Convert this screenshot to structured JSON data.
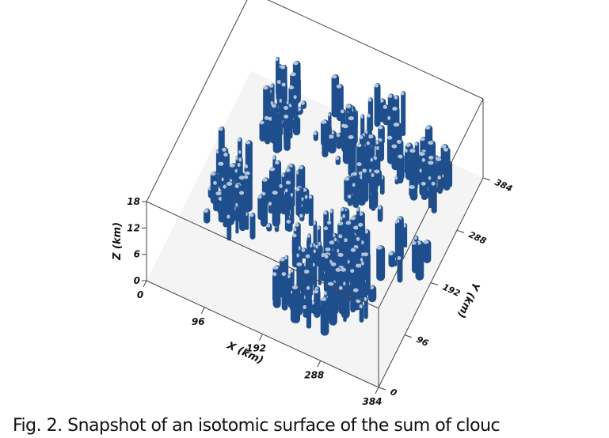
{
  "figure": {
    "axes": {
      "x": {
        "label": "X (km)",
        "ticks": [
          "0",
          "96",
          "192",
          "288",
          "384"
        ]
      },
      "y": {
        "label": "Y (km)",
        "ticks": [
          "0",
          "96",
          "192",
          "288",
          "384"
        ]
      },
      "z": {
        "label": "Z (km)",
        "ticks": [
          "0",
          "6",
          "12",
          "18"
        ]
      }
    },
    "caption": "Fig. 2. Snapshot of an isotomic surface of the sum of clouc"
  }
}
